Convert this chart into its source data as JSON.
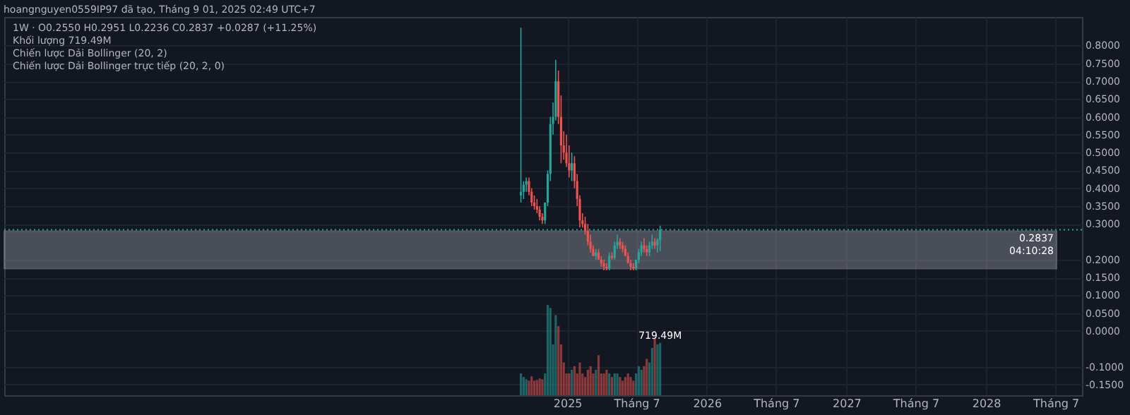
{
  "chart_data": {
    "type": "candlestick",
    "title": "hoangnguyen0559IP97 đã tạo, Tháng 9 01, 2025 02:49 UTC+7",
    "annotations": [
      "1W · O0.2550 H0.2951 L0.2236 C0.2837 +0.0287 (+11.25%)",
      "Khối lượng 719.49M",
      "Chiến lược Dải Bollinger (20, 2)",
      "Chiến lược Dải Bollinger trực tiếp (20, 2, 0)"
    ],
    "x": [
      "2024-09-02",
      "2024-09-09",
      "2024-09-16",
      "2024-09-23",
      "2024-09-30",
      "2024-10-07",
      "2024-10-14",
      "2024-10-21",
      "2024-10-28",
      "2024-11-04",
      "2024-11-11",
      "2024-11-18",
      "2024-11-25",
      "2024-12-02",
      "2024-12-09",
      "2024-12-16",
      "2024-12-23",
      "2024-12-30",
      "2025-01-06",
      "2025-01-13",
      "2025-01-20",
      "2025-01-27",
      "2025-02-03",
      "2025-02-10",
      "2025-02-17",
      "2025-02-24",
      "2025-03-03",
      "2025-03-10",
      "2025-03-17",
      "2025-03-24",
      "2025-03-31",
      "2025-04-07",
      "2025-04-14",
      "2025-04-21",
      "2025-04-28",
      "2025-05-05",
      "2025-05-12",
      "2025-05-19",
      "2025-05-26",
      "2025-06-02",
      "2025-06-09",
      "2025-06-16",
      "2025-06-23",
      "2025-06-30",
      "2025-07-07",
      "2025-07-14",
      "2025-07-21",
      "2025-07-28",
      "2025-08-04",
      "2025-08-11",
      "2025-08-18",
      "2025-08-25",
      "2025-09-01"
    ],
    "ohlc": [
      [
        0.38,
        0.85,
        0.36,
        0.39
      ],
      [
        0.39,
        0.42,
        0.37,
        0.41
      ],
      [
        0.41,
        0.43,
        0.39,
        0.42
      ],
      [
        0.42,
        0.43,
        0.38,
        0.39
      ],
      [
        0.39,
        0.4,
        0.35,
        0.36
      ],
      [
        0.36,
        0.38,
        0.34,
        0.35
      ],
      [
        0.35,
        0.37,
        0.33,
        0.34
      ],
      [
        0.34,
        0.35,
        0.31,
        0.32
      ],
      [
        0.32,
        0.33,
        0.3,
        0.31
      ],
      [
        0.31,
        0.36,
        0.3,
        0.36
      ],
      [
        0.36,
        0.45,
        0.35,
        0.44
      ],
      [
        0.44,
        0.6,
        0.42,
        0.58
      ],
      [
        0.58,
        0.64,
        0.55,
        0.6
      ],
      [
        0.6,
        0.76,
        0.59,
        0.7
      ],
      [
        0.7,
        0.73,
        0.58,
        0.6
      ],
      [
        0.6,
        0.66,
        0.47,
        0.52
      ],
      [
        0.52,
        0.56,
        0.48,
        0.5
      ],
      [
        0.5,
        0.55,
        0.46,
        0.47
      ],
      [
        0.47,
        0.52,
        0.43,
        0.45
      ],
      [
        0.45,
        0.5,
        0.42,
        0.47
      ],
      [
        0.47,
        0.49,
        0.4,
        0.42
      ],
      [
        0.42,
        0.44,
        0.35,
        0.37
      ],
      [
        0.37,
        0.38,
        0.29,
        0.31
      ],
      [
        0.31,
        0.33,
        0.29,
        0.3
      ],
      [
        0.3,
        0.32,
        0.27,
        0.28
      ],
      [
        0.28,
        0.3,
        0.24,
        0.25
      ],
      [
        0.25,
        0.27,
        0.22,
        0.23
      ],
      [
        0.23,
        0.24,
        0.21,
        0.21
      ],
      [
        0.21,
        0.23,
        0.2,
        0.22
      ],
      [
        0.22,
        0.23,
        0.2,
        0.2
      ],
      [
        0.2,
        0.21,
        0.18,
        0.19
      ],
      [
        0.19,
        0.2,
        0.17,
        0.18
      ],
      [
        0.18,
        0.19,
        0.17,
        0.175
      ],
      [
        0.175,
        0.22,
        0.17,
        0.21
      ],
      [
        0.21,
        0.22,
        0.2,
        0.205
      ],
      [
        0.205,
        0.25,
        0.2,
        0.24
      ],
      [
        0.24,
        0.27,
        0.23,
        0.25
      ],
      [
        0.25,
        0.26,
        0.23,
        0.24
      ],
      [
        0.24,
        0.25,
        0.22,
        0.23
      ],
      [
        0.23,
        0.24,
        0.21,
        0.21
      ],
      [
        0.21,
        0.22,
        0.19,
        0.19
      ],
      [
        0.19,
        0.2,
        0.17,
        0.18
      ],
      [
        0.18,
        0.19,
        0.17,
        0.175
      ],
      [
        0.175,
        0.2,
        0.17,
        0.2
      ],
      [
        0.2,
        0.23,
        0.19,
        0.22
      ],
      [
        0.22,
        0.25,
        0.21,
        0.24
      ],
      [
        0.24,
        0.26,
        0.22,
        0.23
      ],
      [
        0.23,
        0.24,
        0.21,
        0.22
      ],
      [
        0.22,
        0.25,
        0.21,
        0.24
      ],
      [
        0.24,
        0.27,
        0.23,
        0.25
      ],
      [
        0.25,
        0.26,
        0.23,
        0.24
      ],
      [
        0.24,
        0.26,
        0.22,
        0.255
      ],
      [
        0.255,
        0.2951,
        0.2236,
        0.2837
      ]
    ],
    "colors": [
      "#26a69a",
      "#26a69a",
      "#26a69a",
      "#ef5350",
      "#ef5350",
      "#ef5350",
      "#ef5350",
      "#ef5350",
      "#ef5350",
      "#26a69a",
      "#26a69a",
      "#26a69a",
      "#26a69a",
      "#26a69a",
      "#ef5350",
      "#ef5350",
      "#ef5350",
      "#ef5350",
      "#ef5350",
      "#26a69a",
      "#ef5350",
      "#ef5350",
      "#ef5350",
      "#ef5350",
      "#ef5350",
      "#ef5350",
      "#ef5350",
      "#ef5350",
      "#26a69a",
      "#ef5350",
      "#ef5350",
      "#ef5350",
      "#ef5350",
      "#26a69a",
      "#ef5350",
      "#26a69a",
      "#26a69a",
      "#ef5350",
      "#ef5350",
      "#ef5350",
      "#ef5350",
      "#ef5350",
      "#ef5350",
      "#26a69a",
      "#26a69a",
      "#26a69a",
      "#ef5350",
      "#ef5350",
      "#26a69a",
      "#26a69a",
      "#ef5350",
      "#26a69a",
      "#26a69a"
    ],
    "series": [
      {
        "type": "bar",
        "axis": "y2",
        "values": [
          300,
          250,
          220,
          200,
          260,
          200,
          210,
          230,
          220,
          300,
          1240,
          1200,
          700,
          1100,
          950,
          700,
          450,
          300,
          300,
          350,
          400,
          300,
          450,
          300,
          250,
          350,
          400,
          300,
          350,
          550,
          300,
          300,
          350,
          300,
          250,
          300,
          300,
          250,
          200,
          250,
          300,
          250,
          200,
          300,
          400,
          350,
          400,
          500,
          450,
          650,
          800,
          700,
          719.49
        ],
        "value_labels": [
          null,
          null,
          null,
          null,
          null,
          null,
          null,
          null,
          null,
          null,
          null,
          null,
          null,
          null,
          null,
          null,
          null,
          null,
          null,
          null,
          null,
          null,
          null,
          null,
          null,
          null,
          null,
          null,
          null,
          null,
          null,
          null,
          null,
          null,
          null,
          null,
          null,
          null,
          null,
          null,
          null,
          null,
          null,
          null,
          null,
          null,
          null,
          null,
          null,
          null,
          null,
          null,
          "719.49M"
        ],
        "colors": [
          "#26a69a",
          "#26a69a",
          "#26a69a",
          "#ef5350",
          "#ef5350",
          "#ef5350",
          "#ef5350",
          "#ef5350",
          "#ef5350",
          "#26a69a",
          "#26a69a",
          "#26a69a",
          "#26a69a",
          "#26a69a",
          "#ef5350",
          "#ef5350",
          "#ef5350",
          "#ef5350",
          "#ef5350",
          "#26a69a",
          "#ef5350",
          "#ef5350",
          "#ef5350",
          "#ef5350",
          "#ef5350",
          "#ef5350",
          "#ef5350",
          "#ef5350",
          "#26a69a",
          "#ef5350",
          "#ef5350",
          "#ef5350",
          "#ef5350",
          "#26a69a",
          "#ef5350",
          "#26a69a",
          "#26a69a",
          "#ef5350",
          "#ef5350",
          "#ef5350",
          "#ef5350",
          "#ef5350",
          "#ef5350",
          "#26a69a",
          "#26a69a",
          "#26a69a",
          "#ef5350",
          "#ef5350",
          "#26a69a",
          "#26a69a",
          "#ef5350",
          "#26a69a",
          "#26a69a"
        ]
      }
    ],
    "y2lim": [
      0,
      5200
    ],
    "xlim": [
      "2020-12-21",
      "2028-09-08"
    ],
    "xticks": [
      {
        "value": "2025-01-01",
        "label": "2025"
      },
      {
        "value": "2025-07-01",
        "label": "Tháng 7"
      },
      {
        "value": "2026-01-01",
        "label": "2026"
      },
      {
        "value": "2026-07-01",
        "label": "Tháng 7"
      },
      {
        "value": "2027-01-01",
        "label": "2027"
      },
      {
        "value": "2027-07-01",
        "label": "Tháng 7"
      },
      {
        "value": "2028-01-01",
        "label": "2028"
      },
      {
        "value": "2028-07-01",
        "label": "Tháng 7"
      }
    ],
    "ylim": [
      -0.18,
      0.88
    ],
    "yticks": [
      {
        "value": -0.15,
        "label": "-0.1500"
      },
      {
        "value": -0.1,
        "label": "-0.1000"
      },
      {
        "value": 0,
        "label": "0.0000"
      },
      {
        "value": 0.05,
        "label": "0.0500"
      },
      {
        "value": 0.1,
        "label": "0.1000"
      },
      {
        "value": 0.15,
        "label": "0.1500"
      },
      {
        "value": 0.2,
        "label": "0.2000"
      },
      {
        "value": 0.3,
        "label": "0.3000"
      },
      {
        "value": 0.35,
        "label": "0.3500"
      },
      {
        "value": 0.4,
        "label": "0.4000"
      },
      {
        "value": 0.45,
        "label": "0.4500"
      },
      {
        "value": 0.5,
        "label": "0.5000"
      },
      {
        "value": 0.55,
        "label": "0.5500"
      },
      {
        "value": 0.6,
        "label": "0.6000"
      },
      {
        "value": 0.65,
        "label": "0.6500"
      },
      {
        "value": 0.7,
        "label": "0.7000"
      },
      {
        "value": 0.75,
        "label": "0.7500"
      },
      {
        "value": 0.8,
        "label": "0.8000"
      }
    ],
    "ref_lines": [
      {
        "axis": "y",
        "value": 0.2837,
        "label": "0.2837\n04:10:28",
        "color": "#26a69a",
        "line_style": "dotted"
      }
    ],
    "bands": [
      {
        "axis": "y",
        "from": 0.175,
        "to": 0.28,
        "color": "#b2b5be"
      }
    ],
    "grid": true
  }
}
